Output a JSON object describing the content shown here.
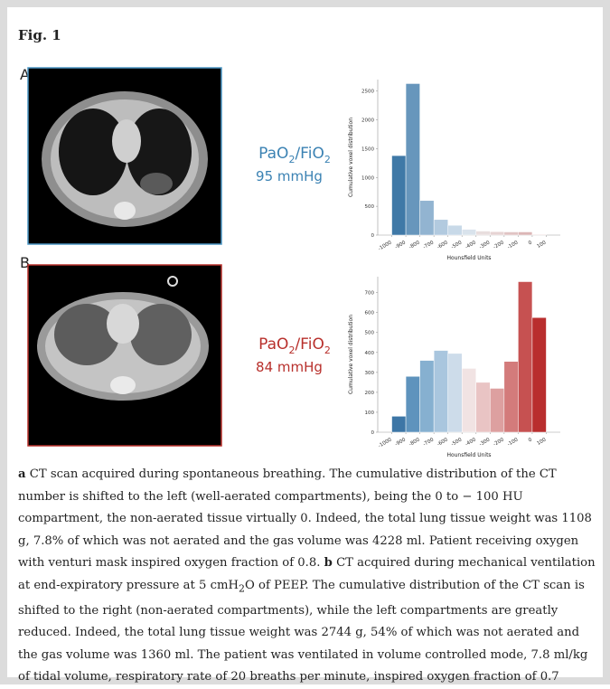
{
  "figure": "Fig. 1",
  "panels": [
    {
      "letter": "A",
      "ratio": [
        "PaO",
        "2",
        "/FiO",
        "2"
      ],
      "value": "95 mmHg",
      "color": "#3b82b3"
    },
    {
      "letter": "B",
      "ratio": [
        "PaO",
        "2",
        "/FiO",
        "2"
      ],
      "value": "84 mmHg",
      "color": "#b8302c"
    }
  ],
  "chart_data": [
    {
      "type": "histogram",
      "xlabel": "Hounsfield Units",
      "ylabel": "Cumulative voxel distribution",
      "bins": [
        -1000,
        -900,
        -800,
        -700,
        -600,
        -500,
        -400,
        -300,
        -200,
        -100,
        0,
        100
      ],
      "values": [
        1380,
        2630,
        600,
        270,
        170,
        100,
        70,
        60,
        55,
        55,
        10
      ],
      "colors": [
        "#3f79a7",
        "#6796bc",
        "#92b4d1",
        "#b2cadf",
        "#c8d9e8",
        "#d9e3ec",
        "#e8dede",
        "#e6d3d3",
        "#e0c4c4",
        "#dcb6b6",
        "#d8a8a8"
      ],
      "xlim": [
        -1100,
        200
      ],
      "ylim": [
        0,
        2700
      ],
      "xticks": [
        -1000,
        -900,
        -800,
        -700,
        -600,
        -500,
        -400,
        -300,
        -200,
        -100,
        0,
        100
      ],
      "yticks": [
        0,
        500,
        1000,
        1500,
        2000,
        2500
      ]
    },
    {
      "type": "histogram",
      "xlabel": "Hounsfield Units",
      "ylabel": "Cumulative voxel distribution",
      "bins": [
        -1000,
        -900,
        -800,
        -700,
        -600,
        -500,
        -400,
        -300,
        -200,
        -100,
        0,
        100
      ],
      "values": [
        80,
        280,
        360,
        410,
        395,
        320,
        250,
        220,
        355,
        755,
        575
      ],
      "colors": [
        "#3d76a6",
        "#5e93bd",
        "#86b0d0",
        "#a9c6de",
        "#cddcea",
        "#f1e3e3",
        "#e9c4c4",
        "#dda0a0",
        "#d37b7b",
        "#c65151",
        "#b92e2e"
      ],
      "xlim": [
        -1100,
        200
      ],
      "ylim": [
        0,
        780
      ],
      "xticks": [
        -1000,
        -900,
        -800,
        -700,
        -600,
        -500,
        -400,
        -300,
        -200,
        -100,
        0,
        100
      ],
      "yticks": [
        0,
        100,
        200,
        300,
        400,
        500,
        600,
        700
      ]
    }
  ],
  "caption": [
    "a",
    " CT scan acquired during spontaneous breathing. The cumulative distribution of the CT number is shifted to the left (well-aerated compartments), being the 0 to − 100 HU compartment, the non-aerated tissue virtually 0. Indeed, the total lung tissue weight was 1108 g, 7.8% of which was not aerated and the gas volume was 4228 ml. Patient receiving oxygen with venturi mask inspired oxygen fraction of 0.8. ",
    "b",
    " CT acquired during mechanical ventilation at end-expiratory pressure at 5 cmH",
    "2",
    "O of PEEP. The cumulative distribution of the CT scan is shifted to the right (non-aerated compartments), while the left compartments are greatly reduced. Indeed, the total lung tissue weight was 2744 g, 54% of which was not aerated and the gas volume was 1360 ml. The patient was ventilated in volume controlled mode, 7.8 ml/kg of tidal volume, respiratory rate of 20 breaths per minute, inspired oxygen fraction of 0.7"
  ]
}
